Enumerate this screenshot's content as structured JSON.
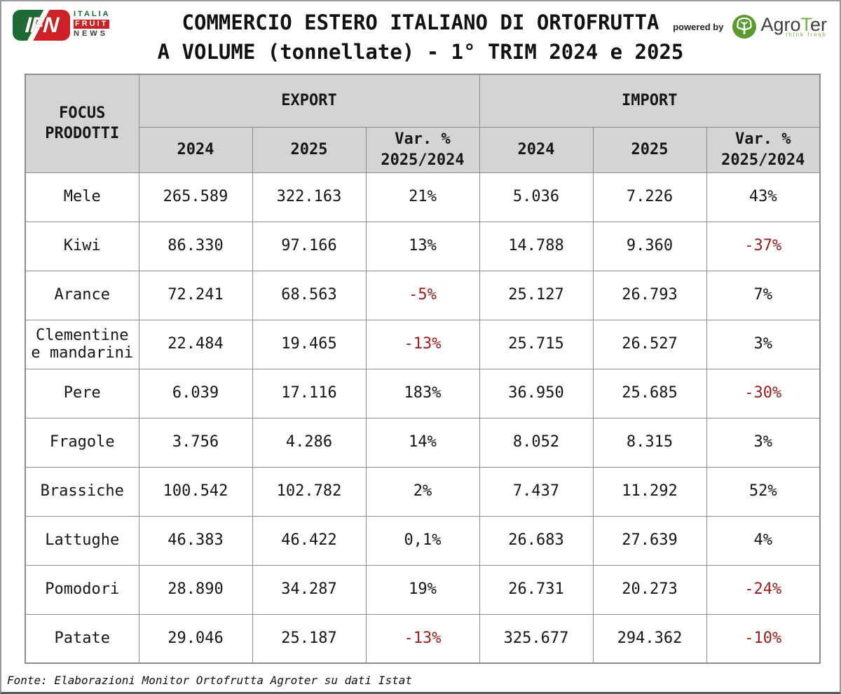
{
  "colors": {
    "header_bg": "#d4d4d4",
    "grid": "#8c8c8c",
    "negative_text": "#9c1c1c",
    "ifn_green": "#1d6a35",
    "ifn_red": "#ce2027",
    "agroter_green": "#5a9b31"
  },
  "header": {
    "logo": {
      "badge": "IFN",
      "line1": "ITALIA",
      "line2": "FRUIT",
      "line3": "NEWS"
    },
    "title_line1": "COMMERCIO ESTERO ITALIANO DI ORTOFRUTTA",
    "title_line2": "A VOLUME (tonnellate) - 1° TRIM 2024 e 2025",
    "powered_by": "powered by",
    "agroter_name_1": "Agro",
    "agroter_name_2": "T",
    "agroter_name_3": "er",
    "agroter_tagline": "think fresh"
  },
  "table": {
    "corner_header": "FOCUS\nPRODOTTI",
    "group_headers": [
      "EXPORT",
      "IMPORT"
    ],
    "sub_headers": [
      "2024",
      "2025",
      "Var. %\n2025/2024"
    ],
    "rows": [
      {
        "product": "Mele",
        "values": [
          "265.589",
          "322.163",
          "21%",
          "5.036",
          "7.226",
          "43%"
        ]
      },
      {
        "product": "Kiwi",
        "values": [
          "86.330",
          "97.166",
          "13%",
          "14.788",
          "9.360",
          "-37%"
        ]
      },
      {
        "product": "Arance",
        "values": [
          "72.241",
          "68.563",
          "-5%",
          "25.127",
          "26.793",
          "7%"
        ]
      },
      {
        "product": "Clementine e mandarini",
        "values": [
          "22.484",
          "19.465",
          "-13%",
          "25.715",
          "26.527",
          "3%"
        ]
      },
      {
        "product": "Pere",
        "values": [
          "6.039",
          "17.116",
          "183%",
          "36.950",
          "25.685",
          "-30%"
        ]
      },
      {
        "product": "Fragole",
        "values": [
          "3.756",
          "4.286",
          "14%",
          "8.052",
          "8.315",
          "3%"
        ]
      },
      {
        "product": "Brassiche",
        "values": [
          "100.542",
          "102.782",
          "2%",
          "7.437",
          "11.292",
          "52%"
        ]
      },
      {
        "product": "Lattughe",
        "values": [
          "46.383",
          "46.422",
          "0,1%",
          "26.683",
          "27.639",
          "4%"
        ]
      },
      {
        "product": "Pomodori",
        "values": [
          "28.890",
          "34.287",
          "19%",
          "26.731",
          "20.273",
          "-24%"
        ]
      },
      {
        "product": "Patate",
        "values": [
          "29.046",
          "25.187",
          "-13%",
          "325.677",
          "294.362",
          "-10%"
        ]
      }
    ]
  },
  "footer": {
    "source": "Fonte: Elaborazioni Monitor Ortofrutta Agroter su dati Istat"
  },
  "chart_data": {
    "type": "table",
    "title": "COMMERCIO ESTERO ITALIANO DI ORTOFRUTTA A VOLUME (tonnellate) - 1° TRIM 2024 e 2025",
    "unit": "tonnellate",
    "period": "1° TRIM 2024 e 2025",
    "columns": [
      "FOCUS PRODOTTI",
      "EXPORT 2024",
      "EXPORT 2025",
      "EXPORT Var. % 2025/2024",
      "IMPORT 2024",
      "IMPORT 2025",
      "IMPORT Var. % 2025/2024"
    ],
    "rows": [
      [
        "Mele",
        265589,
        322163,
        21,
        5036,
        7226,
        43
      ],
      [
        "Kiwi",
        86330,
        97166,
        13,
        14788,
        9360,
        -37
      ],
      [
        "Arance",
        72241,
        68563,
        -5,
        25127,
        26793,
        7
      ],
      [
        "Clementine e mandarini",
        22484,
        19465,
        -13,
        25715,
        26527,
        3
      ],
      [
        "Pere",
        6039,
        17116,
        183,
        36950,
        25685,
        -30
      ],
      [
        "Fragole",
        3756,
        4286,
        14,
        8052,
        8315,
        3
      ],
      [
        "Brassiche",
        100542,
        102782,
        2,
        7437,
        11292,
        52
      ],
      [
        "Lattughe",
        46383,
        46422,
        0.1,
        26683,
        27639,
        4
      ],
      [
        "Pomodori",
        28890,
        34287,
        19,
        26731,
        20273,
        -24
      ],
      [
        "Patate",
        29046,
        25187,
        -13,
        325677,
        294362,
        -10
      ]
    ],
    "source": "Fonte: Elaborazioni Monitor Ortofrutta Agroter su dati Istat",
    "notes": "Negative Var. % values shown in dark red (#9c1c1c)"
  }
}
